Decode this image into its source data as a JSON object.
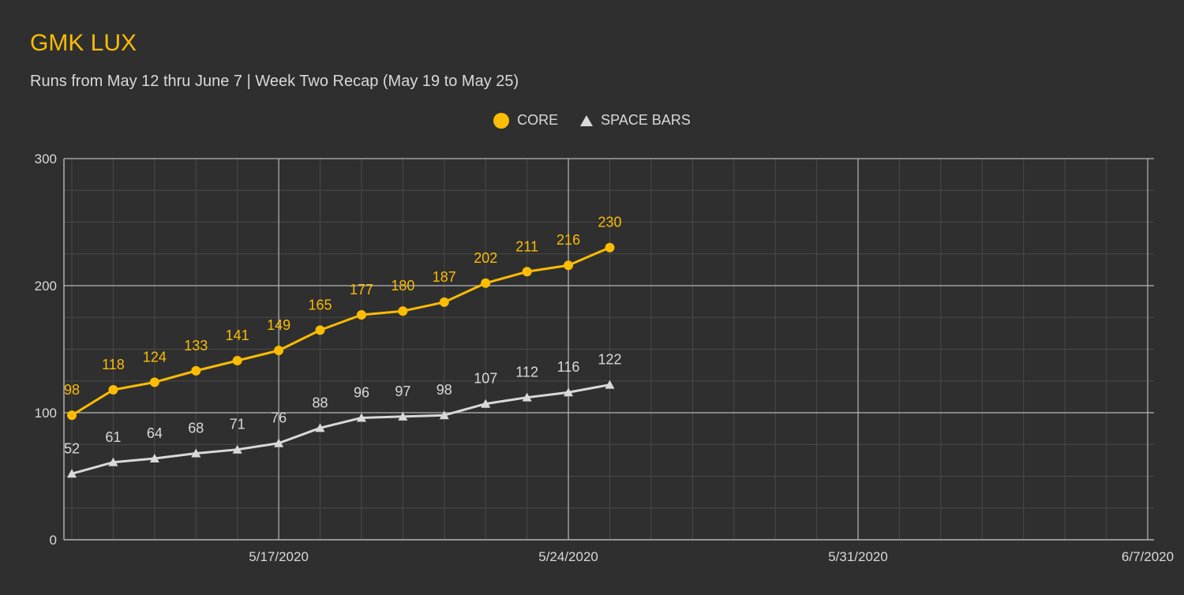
{
  "chart_data": {
    "type": "line",
    "title": "GMK LUX",
    "subtitle": "Runs from May 12 thru June 7 | Week Two Recap (May 19 to May 25)",
    "xlabel": "",
    "ylabel": "",
    "ylim": [
      0,
      300
    ],
    "yticks": [
      0,
      100,
      200,
      300
    ],
    "xlim": [
      0,
      26
    ],
    "xticks": [
      {
        "x": 5,
        "label": "5/17/2020"
      },
      {
        "x": 12,
        "label": "5/24/2020"
      },
      {
        "x": 19,
        "label": "5/31/2020"
      },
      {
        "x": 26,
        "label": "6/7/2020"
      }
    ],
    "x": [
      0,
      1,
      2,
      3,
      4,
      5,
      6,
      7,
      8,
      9,
      10,
      11,
      12,
      13
    ],
    "dates": [
      "5/12/2020",
      "5/13/2020",
      "5/14/2020",
      "5/15/2020",
      "5/16/2020",
      "5/17/2020",
      "5/18/2020",
      "5/19/2020",
      "5/20/2020",
      "5/21/2020",
      "5/22/2020",
      "5/23/2020",
      "5/24/2020",
      "5/25/2020"
    ],
    "series": [
      {
        "name": "CORE",
        "marker": "circle",
        "color": "#fbbc04",
        "values": [
          98,
          118,
          124,
          133,
          141,
          149,
          165,
          177,
          180,
          187,
          202,
          211,
          216,
          230
        ]
      },
      {
        "name": "SPACE BARS",
        "marker": "triangle",
        "color": "#d9d9d9",
        "values": [
          52,
          61,
          64,
          68,
          71,
          76,
          88,
          96,
          97,
          98,
          107,
          112,
          116,
          122
        ]
      }
    ],
    "legend_position": "top-center",
    "grid": true
  },
  "colors": {
    "background": "#2f2f2f",
    "title": "#fbbc04",
    "core": "#fbbc04",
    "space": "#d9d9d9",
    "grid_major": "#b8b8b8",
    "grid_minor": "#4a4a4a",
    "axis_text": "#d9d9d9"
  }
}
